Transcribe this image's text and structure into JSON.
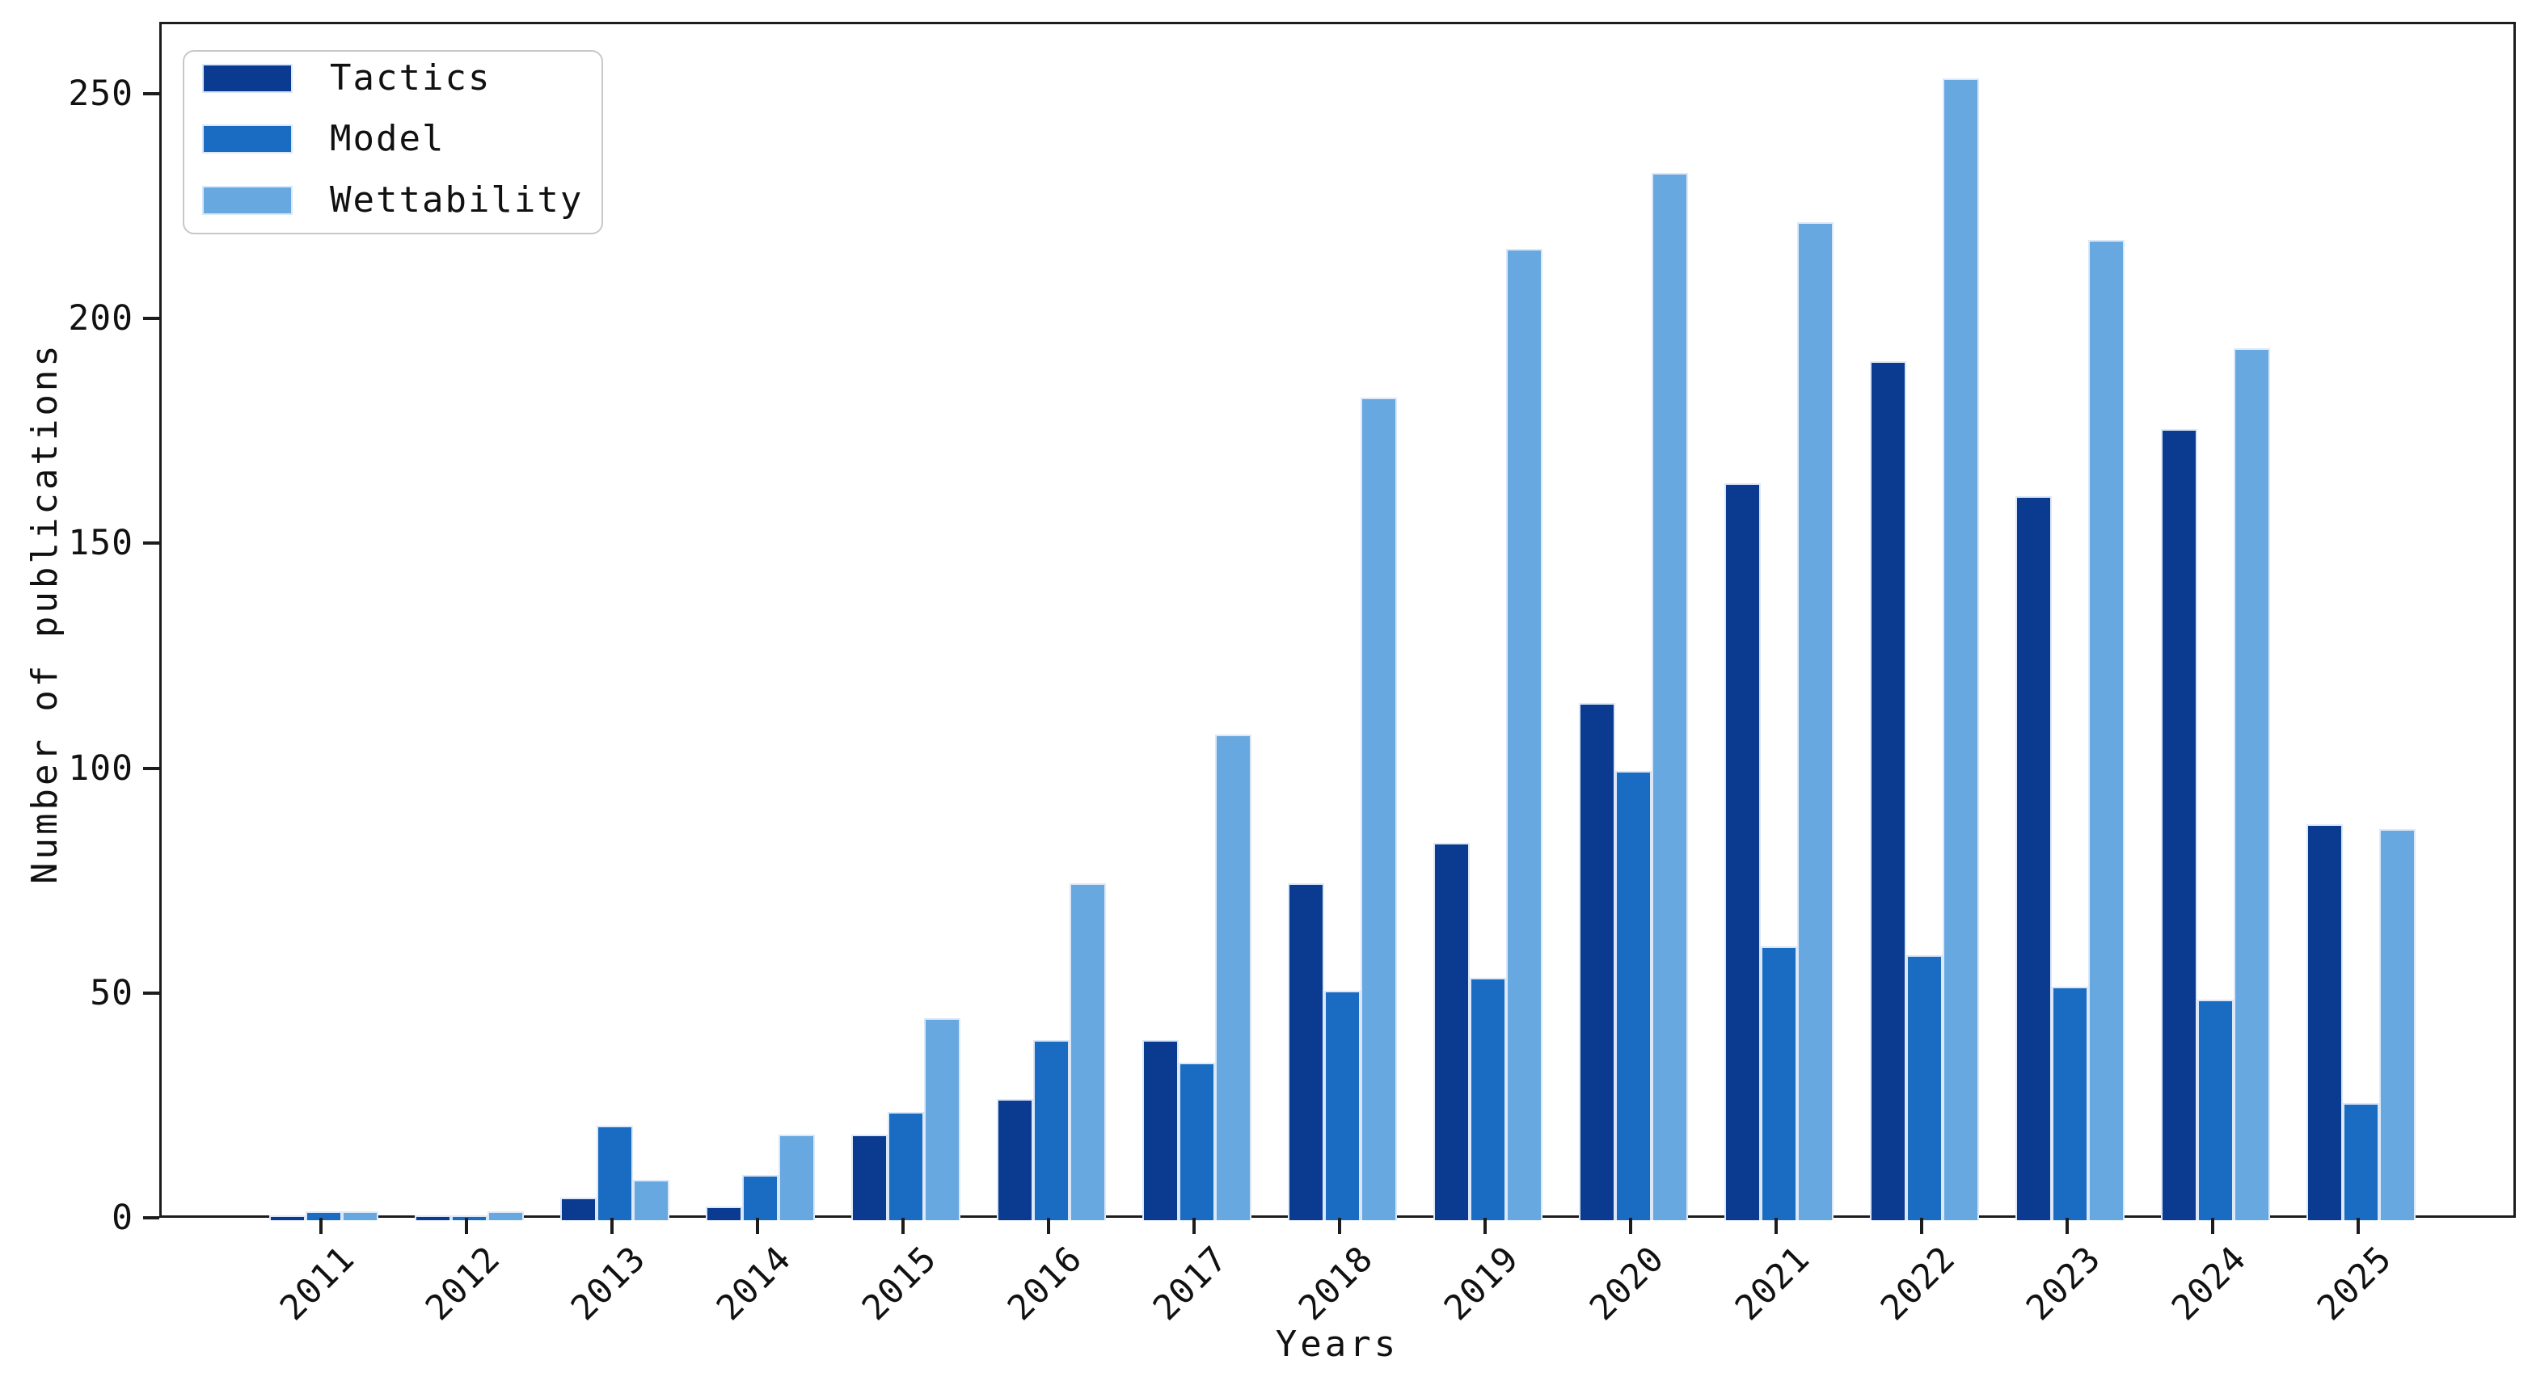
{
  "chart_data": {
    "type": "bar",
    "title": "",
    "categories": [
      "2011",
      "2012",
      "2013",
      "2014",
      "2015",
      "2016",
      "2017",
      "2018",
      "2019",
      "2020",
      "2021",
      "2022",
      "2023",
      "2024",
      "2025"
    ],
    "series": [
      {
        "name": "Tactics",
        "color": "#0a3b90",
        "values": [
          1,
          1,
          5,
          3,
          19,
          27,
          40,
          75,
          84,
          115,
          164,
          191,
          161,
          176,
          88
        ]
      },
      {
        "name": "Model",
        "color": "#1a6cc3",
        "values": [
          2,
          1,
          21,
          10,
          24,
          40,
          35,
          51,
          54,
          100,
          61,
          59,
          52,
          49,
          26
        ]
      },
      {
        "name": "Wettability",
        "color": "#67a8e1",
        "values": [
          2,
          2,
          9,
          19,
          45,
          75,
          108,
          183,
          216,
          233,
          222,
          254,
          218,
          194,
          87
        ]
      }
    ],
    "xlabel": "Years",
    "ylabel": "Number of publications",
    "ylim": [
      0,
      266
    ],
    "yticks": [
      0,
      50,
      100,
      150,
      200,
      250
    ],
    "legend_position": "upper left",
    "grid": false
  },
  "style_colors": {
    "bar_edge": "#dce8f8",
    "axis": "#1c1c1c",
    "legend_border": "#c8c8c8",
    "background": "#ffffff"
  }
}
